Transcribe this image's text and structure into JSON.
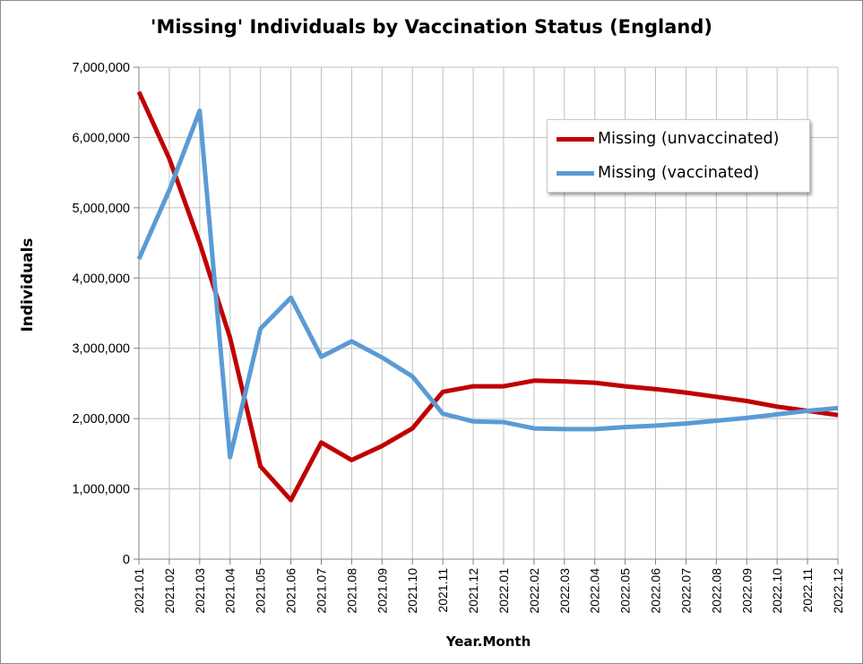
{
  "chart_data": {
    "type": "line",
    "title": "'Missing' Individuals by Vaccination Status (England)",
    "xlabel": "Year.Month",
    "ylabel": "Individuals",
    "ylim": [
      0,
      7000000
    ],
    "yticks": [
      0,
      1000000,
      2000000,
      3000000,
      4000000,
      5000000,
      6000000,
      7000000
    ],
    "ytick_labels": [
      "0",
      "1,000,000",
      "2,000,000",
      "3,000,000",
      "4,000,000",
      "5,000,000",
      "6,000,000",
      "7,000,000"
    ],
    "grid": true,
    "legend_position": "top-right",
    "categories": [
      "2021.01",
      "2021.02",
      "2021.03",
      "2021.04",
      "2021.05",
      "2021.06",
      "2021.07",
      "2021.08",
      "2021.09",
      "2021.10",
      "2021.11",
      "2021.12",
      "2022.01",
      "2022.02",
      "2022.03",
      "2022.04",
      "2022.05",
      "2022.06",
      "2022.07",
      "2022.08",
      "2022.09",
      "2022.10",
      "2022.11",
      "2022.12"
    ],
    "series": [
      {
        "name": "Missing (unvaccinated)",
        "color": "#c00000",
        "values": [
          6650000,
          5700000,
          4500000,
          3150000,
          1320000,
          840000,
          1660000,
          1410000,
          1610000,
          1860000,
          2380000,
          2460000,
          2460000,
          2540000,
          2530000,
          2510000,
          2460000,
          2420000,
          2370000,
          2310000,
          2250000,
          2170000,
          2110000,
          2050000
        ]
      },
      {
        "name": "Missing (vaccinated)",
        "color": "#5a9bd5",
        "values": [
          4270000,
          5250000,
          6380000,
          1450000,
          3280000,
          3720000,
          2880000,
          3100000,
          2870000,
          2600000,
          2070000,
          1960000,
          1950000,
          1860000,
          1850000,
          1850000,
          1880000,
          1900000,
          1930000,
          1970000,
          2010000,
          2060000,
          2110000,
          2150000
        ]
      }
    ]
  }
}
